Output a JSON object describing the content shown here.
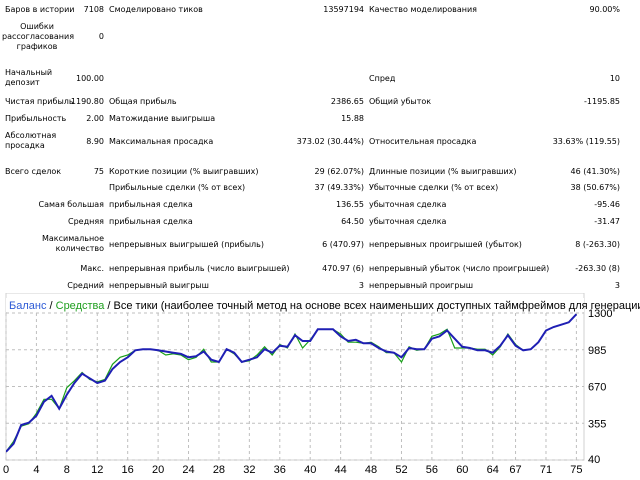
{
  "report": {
    "bars_in_history_label": "Баров в истории",
    "bars_in_history_value": "7108",
    "ticks_modeled_label": "Смоделировано тиков",
    "ticks_modeled_value": "13597194",
    "modeling_quality_label": "Качество моделирования",
    "modeling_quality_value": "90.00%",
    "mismatched_errors_label": "Ошибки рассогласования графиков",
    "mismatched_errors_value": "0",
    "initial_deposit_label": "Начальный депозит",
    "initial_deposit_value": "100.00",
    "spread_label": "Спред",
    "spread_value": "10",
    "net_profit_label": "Чистая прибыль",
    "net_profit_value": "1190.80",
    "gross_profit_label": "Общая прибыль",
    "gross_profit_value": "2386.65",
    "gross_loss_label": "Общий убыток",
    "gross_loss_value": "-1195.85",
    "profit_factor_label": "Прибыльность",
    "profit_factor_value": "2.00",
    "expected_payoff_label": "Матожидание выигрыша",
    "expected_payoff_value": "15.88",
    "abs_drawdown_label": "Абсолютная просадка",
    "abs_drawdown_value": "8.90",
    "max_drawdown_label": "Максимальная просадка",
    "max_drawdown_value": "373.02 (30.44%)",
    "rel_drawdown_label": "Относительная просадка",
    "rel_drawdown_value": "33.63% (119.55)",
    "total_trades_label": "Всего сделок",
    "total_trades_value": "75",
    "short_positions_label": "Короткие позиции (% выигравших)",
    "short_positions_value": "29 (62.07%)",
    "long_positions_label": "Длинные позиции (% выигравших)",
    "long_positions_value": "46 (41.30%)",
    "profit_trades_label": "Прибыльные сделки (% от всех)",
    "profit_trades_value": "37 (49.33%)",
    "loss_trades_label": "Убыточные сделки (% от всех)",
    "loss_trades_value": "38 (50.67%)",
    "largest_label": "Самая большая",
    "largest_profit_label": "прибыльная сделка",
    "largest_profit_value": "136.55",
    "largest_loss_label": "убыточная сделка",
    "largest_loss_value": "-95.46",
    "average_label": "Средняя",
    "average_profit_label": "прибыльная сделка",
    "average_profit_value": "64.50",
    "average_loss_label": "убыточная сделка",
    "average_loss_value": "-31.47",
    "max_count_label": "Максимальное количество",
    "consec_wins_label": "непрерывных выигрышей (прибыль)",
    "consec_wins_value": "6 (470.97)",
    "consec_losses_label": "непрерывных проигрышей (убыток)",
    "consec_losses_value": "8 (-263.30)",
    "max_label": "Макс.",
    "consec_profit_label": "непрерывная прибыль (число выигрышей)",
    "consec_profit_value": "470.97 (6)",
    "consec_loss_label": "непрерывный убыток (число проигрышей)",
    "consec_loss_value": "-263.30 (8)",
    "avg_label": "Средний",
    "avg_consec_wins_label": "непрерывный выигрыш",
    "avg_consec_wins_value": "3",
    "avg_consec_losses_label": "непрерывный проигрыш",
    "avg_consec_losses_value": "3"
  },
  "chart_data": {
    "type": "line",
    "legend": {
      "balance_label": "Баланс",
      "balance_sep": " / ",
      "equity_label": "Средства",
      "equity_sep": " / ",
      "rest": "Все тики (наиболее точный метод на основе всех наименьших доступных таймфреймов для генерации кажд"
    },
    "colors": {
      "balance": "#1f1fb4",
      "equity": "#18a018",
      "legend_balance": "#2e5bd6",
      "legend_equity": "#1e9e1e",
      "grid": "#bfbfbf"
    },
    "xlim": [
      0,
      76
    ],
    "ylim": [
      40,
      1300
    ],
    "x_ticks": [
      "0",
      "4",
      "8",
      "12",
      "16",
      "20",
      "24",
      "28",
      "32",
      "36",
      "40",
      "44",
      "48",
      "52",
      "56",
      "60",
      "64",
      "67",
      "71",
      "75"
    ],
    "y_ticks": [
      "1300",
      "985",
      "670",
      "355",
      "40"
    ],
    "x": [
      0,
      1,
      2,
      3,
      4,
      5,
      6,
      7,
      8,
      9,
      10,
      11,
      12,
      13,
      14,
      15,
      16,
      17,
      18,
      19,
      20,
      21,
      22,
      23,
      24,
      25,
      26,
      27,
      28,
      29,
      30,
      31,
      32,
      33,
      34,
      35,
      36,
      37,
      38,
      39,
      40,
      41,
      42,
      43,
      44,
      45,
      46,
      47,
      48,
      49,
      50,
      51,
      52,
      53,
      54,
      55,
      56,
      57,
      58,
      59,
      60,
      61,
      62,
      63,
      64,
      65,
      66,
      67,
      68,
      69,
      70,
      71,
      72,
      73,
      74,
      75
    ],
    "series": [
      {
        "name": "Баланс",
        "values": [
          110,
          180,
          340,
          360,
          420,
          540,
          590,
          480,
          600,
          700,
          780,
          740,
          700,
          720,
          820,
          880,
          920,
          980,
          990,
          990,
          980,
          970,
          960,
          950,
          920,
          930,
          970,
          900,
          880,
          990,
          960,
          880,
          900,
          920,
          990,
          960,
          1020,
          1010,
          1110,
          1060,
          1060,
          1160,
          1160,
          1160,
          1100,
          1060,
          1070,
          1040,
          1040,
          1000,
          970,
          960,
          920,
          1000,
          990,
          990,
          1080,
          1100,
          1150,
          1080,
          1010,
          1000,
          980,
          980,
          960,
          1020,
          1110,
          1020,
          980,
          990,
          1050,
          1150,
          1180,
          1200,
          1220,
          1290
        ]
      },
      {
        "name": "Средства",
        "values": [
          110,
          200,
          330,
          350,
          440,
          560,
          560,
          480,
          660,
          720,
          790,
          730,
          710,
          730,
          860,
          920,
          940,
          980,
          990,
          990,
          980,
          940,
          950,
          940,
          900,
          920,
          990,
          880,
          880,
          990,
          950,
          880,
          890,
          940,
          1010,
          940,
          1030,
          1000,
          1120,
          1000,
          1070,
          1160,
          1160,
          1160,
          1120,
          1050,
          1050,
          1040,
          1050,
          1010,
          960,
          960,
          880,
          1010,
          980,
          990,
          1100,
          1120,
          1160,
          1000,
          1000,
          1000,
          990,
          990,
          940,
          1010,
          1120,
          1030,
          980,
          990,
          1050,
          1150,
          1180,
          1200,
          1220,
          1290
        ]
      }
    ]
  }
}
